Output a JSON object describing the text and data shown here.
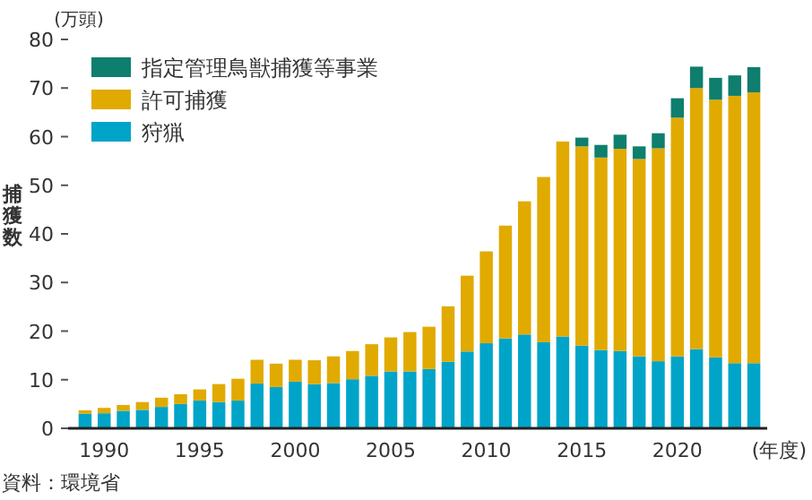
{
  "chart_data": {
    "type": "bar",
    "stacked": true,
    "x": [
      1989,
      1990,
      1991,
      1992,
      1993,
      1994,
      1995,
      1996,
      1997,
      1998,
      1999,
      2000,
      2001,
      2002,
      2003,
      2004,
      2005,
      2006,
      2007,
      2008,
      2009,
      2010,
      2011,
      2012,
      2013,
      2014,
      2015,
      2016,
      2017,
      2018,
      2019,
      2020,
      2021,
      2022,
      2023,
      2024
    ],
    "series": [
      {
        "name": "狩猟",
        "color": "#00a4c8",
        "values": [
          3.0,
          3.1,
          3.6,
          3.8,
          4.4,
          5.0,
          5.7,
          5.4,
          5.7,
          9.2,
          8.5,
          9.6,
          9.1,
          9.3,
          10.1,
          10.8,
          11.7,
          11.7,
          12.2,
          13.7,
          15.8,
          17.5,
          18.5,
          19.3,
          17.7,
          18.9,
          17.0,
          16.1,
          15.9,
          14.8,
          13.8,
          14.8,
          16.3,
          14.6,
          13.4,
          13.4
        ]
      },
      {
        "name": "許可捕獲",
        "color": "#e0aa00",
        "values": [
          0.7,
          1.1,
          1.2,
          1.6,
          1.9,
          2.0,
          2.3,
          3.7,
          4.5,
          4.9,
          4.8,
          4.5,
          4.9,
          5.5,
          5.8,
          6.5,
          7.0,
          8.1,
          8.7,
          11.4,
          15.6,
          18.9,
          23.2,
          27.4,
          34.0,
          40.1,
          41.0,
          39.6,
          41.6,
          40.6,
          43.8,
          49.1,
          53.7,
          53.0,
          55.0,
          55.7
        ]
      },
      {
        "name": "指定管理鳥獣捕獲等事業",
        "color": "#0e7e6e",
        "values": [
          null,
          null,
          null,
          null,
          null,
          null,
          null,
          null,
          null,
          null,
          null,
          null,
          null,
          null,
          null,
          null,
          null,
          null,
          null,
          null,
          null,
          null,
          null,
          null,
          null,
          null,
          1.8,
          2.6,
          2.9,
          2.6,
          3.1,
          4.0,
          4.4,
          4.5,
          4.2,
          5.2
        ]
      }
    ],
    "xlim": [
      1988.3,
      2024.7
    ],
    "xticks": [
      1990,
      1995,
      2000,
      2005,
      2010,
      2015,
      2020
    ],
    "ylim": [
      0,
      80
    ],
    "yticks": [
      0,
      10,
      20,
      30,
      40,
      50,
      60,
      70,
      80
    ],
    "xlabel": "(年度)",
    "ylabel": "捕獲数",
    "legend": "top left",
    "annotations": [
      "(万頭)",
      "資料：環境省"
    ]
  }
}
